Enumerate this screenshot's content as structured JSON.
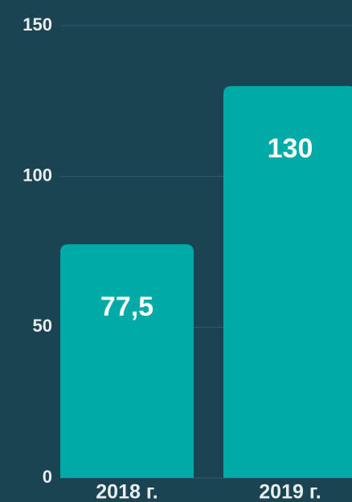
{
  "chart_data": {
    "type": "bar",
    "categories": [
      "2018 г.",
      "2019 г."
    ],
    "values": [
      77.5,
      130
    ],
    "value_labels": [
      "77,5",
      "130"
    ],
    "color": "#00aaa6",
    "ylim": [
      0,
      150
    ],
    "yticks": [
      0,
      50,
      100,
      150
    ],
    "grid": true
  }
}
